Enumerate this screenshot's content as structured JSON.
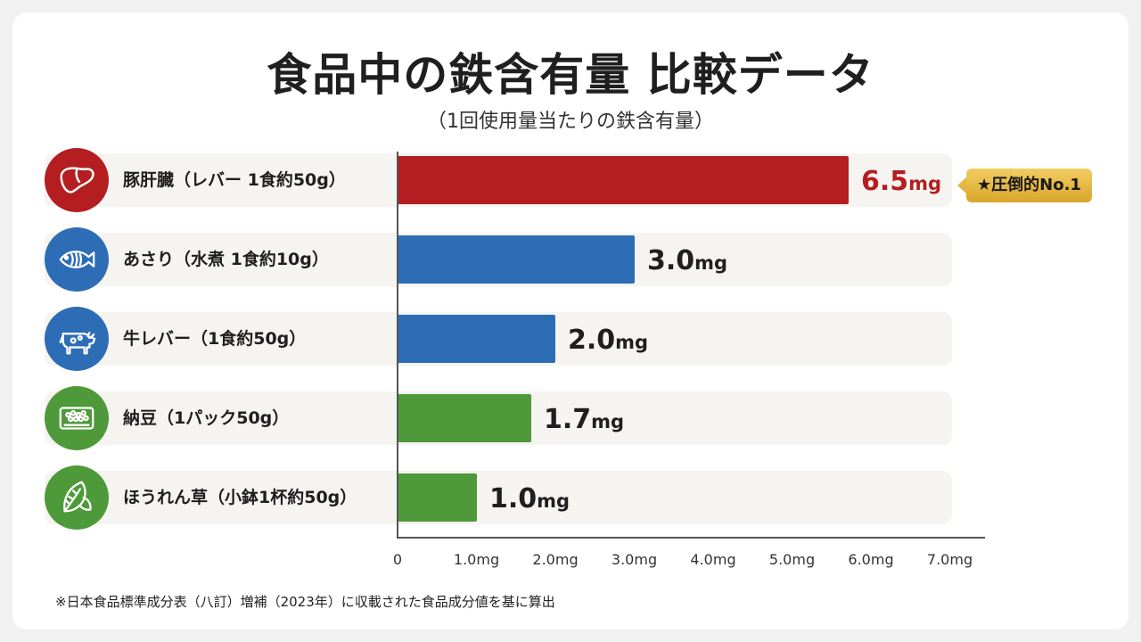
{
  "title": "食品中の鉄含有量 比較データ",
  "subtitle": "（1回使用量当たりの鉄含有量）",
  "footnote": "※日本食品標準成分表（八訂）増補（2023年）に収載された食品成分値を基に算出",
  "badge": "★圧倒的No.1",
  "colors": {
    "red": "#b41e20",
    "blue": "#2d6db5",
    "green": "#4e9a3a"
  },
  "chart_data": {
    "type": "bar",
    "orientation": "horizontal",
    "xlim": [
      0,
      7.0
    ],
    "x_ticks": [
      "0",
      "1.0mg",
      "2.0mg",
      "3.0mg",
      "4.0mg",
      "5.0mg",
      "6.0mg",
      "7.0mg"
    ],
    "grid": false,
    "categories": [
      "豚肝臓（レバー 1食約50g）",
      "あさり（水煮 1食約10g）",
      "牛レバー（1食約50g）",
      "納豆（1パック50g）",
      "ほうれん草（小鉢1杯約50g）"
    ],
    "values": [
      6.5,
      3.0,
      2.0,
      1.7,
      1.0
    ],
    "value_labels": [
      "6.5",
      "3.0",
      "2.0",
      "1.7",
      "1.0"
    ],
    "unit": "mg",
    "bar_colors": [
      "#b41e20",
      "#2d6db5",
      "#2d6db5",
      "#4e9a3a",
      "#4e9a3a"
    ],
    "icons": [
      "liver-icon",
      "fish-icon",
      "cow-icon",
      "natto-icon",
      "spinach-icon"
    ]
  }
}
